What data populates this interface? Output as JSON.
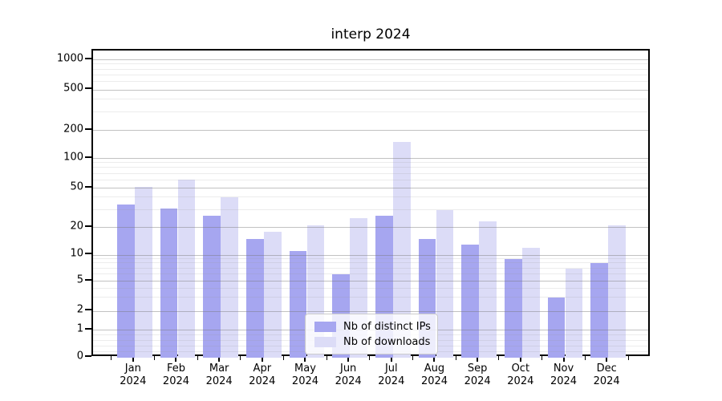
{
  "chart_data": {
    "type": "bar",
    "title": "interp 2024",
    "categories": [
      "Jan 2024",
      "Feb 2024",
      "Mar 2024",
      "Apr 2024",
      "May 2024",
      "Jun 2024",
      "Jul 2024",
      "Aug 2024",
      "Sep 2024",
      "Oct 2024",
      "Nov 2024",
      "Dec 2024"
    ],
    "series": [
      {
        "name": "Nb of distinct IPs",
        "color": "#a6a6f0",
        "values": [
          34,
          31,
          26,
          15,
          11,
          6,
          26,
          15,
          13,
          9,
          3,
          8
        ]
      },
      {
        "name": "Nb of downloads",
        "color": "#dcdcf7",
        "values": [
          51,
          61,
          40,
          18,
          21,
          25,
          150,
          30,
          23,
          12,
          7,
          21
        ]
      }
    ],
    "y_axis": {
      "scale": "symlog",
      "ticks": [
        0,
        1,
        2,
        5,
        10,
        20,
        50,
        100,
        200,
        500,
        1000
      ],
      "tick_labels": [
        "0",
        "1",
        "2",
        "5",
        "10",
        "20",
        "50",
        "100",
        "200",
        "500",
        "1000"
      ],
      "minor_ticks": [
        0.2,
        0.4,
        0.6,
        0.8,
        3,
        4,
        6,
        7,
        8,
        9,
        30,
        40,
        60,
        70,
        80,
        90,
        300,
        400,
        600,
        700,
        800,
        900
      ]
    },
    "xlabel": "",
    "ylabel": "",
    "grid": true,
    "legend_position": "lower center"
  }
}
